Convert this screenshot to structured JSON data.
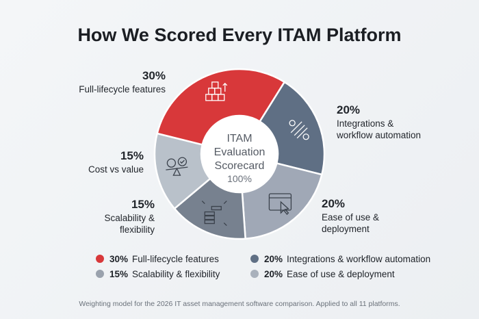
{
  "title": "How We Scored Every ITAM Platform",
  "center": {
    "line1": "ITAM",
    "line2": "Evaluation",
    "line3": "Scorecard",
    "total": "100%"
  },
  "chart_data": {
    "type": "pie",
    "donut": true,
    "title": "How We Scored Every ITAM Platform",
    "categories": [
      "Full-lifecycle features",
      "Integrations & workflow automation",
      "Ease of use & deployment",
      "Scalability & flexibility",
      "Cost vs value"
    ],
    "values": [
      30,
      20,
      20,
      15,
      15
    ],
    "colors": [
      "#d8383a",
      "#5f6f84",
      "#a0a8b6",
      "#77818f",
      "#b9c1ca"
    ],
    "icons": [
      "boxes-arrow-icon",
      "gears-link-icon",
      "window-cursor-icon",
      "servers-expand-icon",
      "scale-dollar-check-icon"
    ]
  },
  "labels": [
    {
      "pct": "30%",
      "text": "Full-lifecycle features"
    },
    {
      "pct": "20%",
      "text": "Integrations &\nworkflow automation"
    },
    {
      "pct": "20%",
      "text": "Ease of use &\ndeployment"
    },
    {
      "pct": "15%",
      "text": "Scalability &\nflexibility"
    },
    {
      "pct": "15%",
      "text": "Cost vs value"
    }
  ],
  "legend": [
    {
      "pct": "30%",
      "text": "Full-lifecycle features",
      "color": "#d8383a"
    },
    {
      "pct": "20%",
      "text": "Integrations & workflow automation",
      "color": "#5f6f84"
    },
    {
      "pct": "15%",
      "text": "Scalability & flexibility",
      "color": "#9aa2ad"
    },
    {
      "pct": "20%",
      "text": "Ease of use & deployment",
      "color": "#a9b1bc"
    }
  ],
  "footnote": "Weighting model for the 2026 IT asset management software comparison. Applied to all 11 platforms."
}
